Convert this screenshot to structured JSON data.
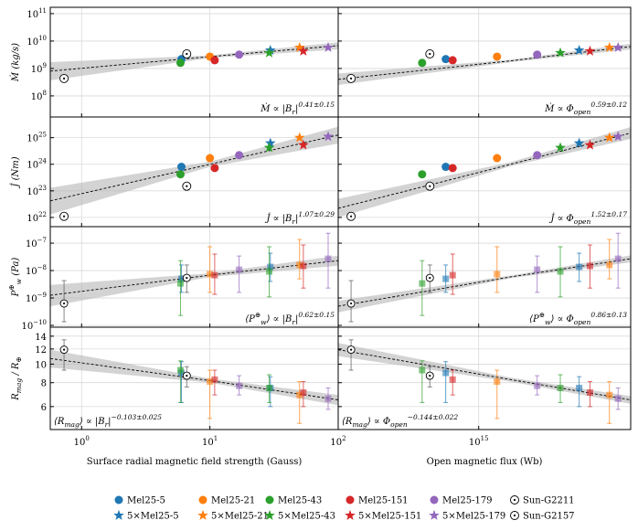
{
  "legend": [
    {
      "name": "Mel25-5",
      "color": "#1f77b4",
      "marker": "circle"
    },
    {
      "name": "Mel25-21",
      "color": "#ff7f0e",
      "marker": "circle"
    },
    {
      "name": "Mel25-43",
      "color": "#2ca02c",
      "marker": "circle"
    },
    {
      "name": "Mel25-151",
      "color": "#d62728",
      "marker": "circle"
    },
    {
      "name": "Mel25-179",
      "color": "#9467bd",
      "marker": "circle"
    },
    {
      "name": "Sun-G2211",
      "color": "#000000",
      "marker": "sun"
    },
    {
      "name": "5×Mel25-5",
      "color": "#1f77b4",
      "marker": "star"
    },
    {
      "name": "5×Mel25-21",
      "color": "#ff7f0e",
      "marker": "star"
    },
    {
      "name": "5×Mel25-43",
      "color": "#2ca02c",
      "marker": "star"
    },
    {
      "name": "5×Mel25-151",
      "color": "#d62728",
      "marker": "star"
    },
    {
      "name": "5×Mel25-179",
      "color": "#9467bd",
      "marker": "star"
    },
    {
      "name": "Sun-G2157",
      "color": "#000000",
      "marker": "sun"
    }
  ],
  "chart_data": [
    {
      "type": "scatter",
      "xscale": "log",
      "yscale": "log",
      "grid": true,
      "annotation_corner": "lower right",
      "ylabel": [
        "Ṁ (kg/s)"
      ],
      "annotation": [
        "Ṁ ∝ |B",
        {
          "sub": "r"
        },
        "|",
        {
          "sup": "0.41±0.15"
        }
      ],
      "xlim": [
        0.57,
        100
      ],
      "ylim": [
        17000000.0,
        170000000000.0
      ],
      "xticks": [
        1,
        10,
        100
      ],
      "yticks": [
        {
          "value": 100000000.0,
          "label": [
            "10",
            "8"
          ]
        },
        {
          "value": 1000000000.0,
          "label": [
            "10",
            "9"
          ]
        },
        {
          "value": 10000000000.0,
          "label": [
            "10",
            "10"
          ]
        },
        {
          "value": 100000000000.0,
          "label": [
            "10",
            "11"
          ]
        }
      ],
      "x": [
        6.0,
        10.0,
        5.9,
        10.9,
        16.9,
        0.73,
        29.6,
        50,
        29,
        53.5,
        83.5,
        6.6
      ],
      "values": [
        2200000000.0,
        2700000000.0,
        1600000000.0,
        2000000000.0,
        3200000000.0,
        430000000.0,
        4600000000.0,
        5800000000.0,
        3700000000.0,
        4300000000.0,
        5800000000.0,
        3400000000.0
      ],
      "fit": {
        "x": [
          0.57,
          10,
          100
        ],
        "values": [
          800000000.0,
          2700000000.0,
          6800000000.0
        ],
        "lower": [
          370000000.0,
          2400000000.0,
          5000000000.0
        ],
        "upper": [
          1700000000.0,
          3000000000.0,
          9000000000.0
        ]
      }
    },
    {
      "type": "scatter",
      "xscale": "log",
      "yscale": "log",
      "grid": true,
      "annotation_corner": "lower right",
      "annotation": [
        "Ṁ ∝ Φ",
        {
          "sub": "open"
        },
        {
          "sup": "0.59±0.12"
        }
      ],
      "xlim": [
        170000000000000.0,
        6800000000000000.0
      ],
      "ylim": [
        17000000.0,
        170000000000.0
      ],
      "xticks": [
        1000000000000000.0
      ],
      "yticks": [
        100000000.0,
        1000000000.0,
        10000000000.0,
        100000000000.0
      ],
      "x": [
        660000000000000.0,
        1260000000000000.0,
        490000000000000.0,
        720000000000000.0,
        2090000000000000.0,
        200000000000000.0,
        3550000000000000.0,
        5200000000000000.0,
        2800000000000000.0,
        4070000000000000.0,
        5800000000000000.0,
        540000000000000.0
      ],
      "values": [
        2200000000.0,
        2700000000.0,
        1600000000.0,
        2000000000.0,
        3200000000.0,
        430000000.0,
        4600000000.0,
        5800000000.0,
        3700000000.0,
        4300000000.0,
        5800000000.0,
        3400000000.0
      ],
      "fit": {
        "x": [
          170000000000000.0,
          1500000000000000.0,
          6800000000000000.0
        ],
        "values": [
          400000000.0,
          1900000000.0,
          6300000000.0
        ],
        "lower": [
          250000000.0,
          1700000000.0,
          5000000000.0
        ],
        "upper": [
          650000000.0,
          2100000000.0,
          8000000000.0
        ]
      }
    },
    {
      "type": "scatter",
      "xscale": "log",
      "yscale": "log",
      "grid": true,
      "annotation_corner": "lower right",
      "ylabel": [
        "J̇ (Nm)"
      ],
      "annotation": [
        "J̇ ∝ |B",
        {
          "sub": "r"
        },
        "|",
        {
          "sup": "1.07±0.29"
        }
      ],
      "xlim": [
        0.57,
        100
      ],
      "ylim": [
        4.5e+21,
        6e+25
      ],
      "xticks": [
        1,
        10,
        100
      ],
      "yticks": [
        {
          "value": 1e+22,
          "label": [
            "10",
            "22"
          ]
        },
        {
          "value": 1e+23,
          "label": [
            "10",
            "23"
          ]
        },
        {
          "value": 1e+24,
          "label": [
            "10",
            "24"
          ]
        },
        {
          "value": 1e+25,
          "label": [
            "10",
            "25"
          ]
        }
      ],
      "x": [
        6.0,
        10.0,
        5.9,
        10.9,
        16.9,
        0.73,
        29.6,
        50,
        29,
        53.5,
        83.5,
        6.6
      ],
      "values": [
        8e+23,
        1.7e+24,
        4.2e+23,
        7.2e+23,
        2.2e+24,
        1.1e+22,
        6.2e+24,
        1e+25,
        4.2e+24,
        5.3e+24,
        1.1e+25,
        1.5e+23
      ],
      "fit": {
        "x": [
          0.57,
          10,
          100
        ],
        "values": [
          4.2e+22,
          1e+24,
          1.26e+25
        ],
        "lower": [
          1.3e+22,
          8e+23,
          6e+24
        ],
        "upper": [
          1.3e+23,
          1.25e+24,
          2.6e+25
        ]
      }
    },
    {
      "type": "scatter",
      "xscale": "log",
      "yscale": "log",
      "grid": true,
      "annotation_corner": "lower right",
      "annotation": [
        "J̇ ∝ Φ",
        {
          "sub": "open"
        },
        {
          "sup": "1.52±0.17"
        }
      ],
      "xlim": [
        170000000000000.0,
        6800000000000000.0
      ],
      "ylim": [
        4.5e+21,
        6e+25
      ],
      "xticks": [
        1000000000000000.0
      ],
      "yticks": [
        1e+22,
        1e+23,
        1e+24,
        1e+25
      ],
      "x": [
        660000000000000.0,
        1260000000000000.0,
        490000000000000.0,
        720000000000000.0,
        2090000000000000.0,
        200000000000000.0,
        3550000000000000.0,
        5200000000000000.0,
        2800000000000000.0,
        4070000000000000.0,
        5800000000000000.0,
        540000000000000.0
      ],
      "values": [
        8e+23,
        1.7e+24,
        4.2e+23,
        7.2e+23,
        2.2e+24,
        1.1e+22,
        6.2e+24,
        1e+25,
        4.2e+24,
        5.3e+24,
        1.1e+25,
        1.5e+23
      ],
      "fit": {
        "x": [
          170000000000000.0,
          1500000000000000.0,
          6800000000000000.0
        ],
        "values": [
          2.2e+22,
          1e+24,
          1.5e+25
        ],
        "lower": [
          1e+22,
          8.5e+23,
          9e+24
        ],
        "upper": [
          5e+22,
          1.2e+24,
          2.5e+25
        ]
      }
    },
    {
      "type": "scatter",
      "xscale": "log",
      "yscale": "log",
      "grid": true,
      "annotation_corner": "lower right",
      "ylabel": [
        "P",
        {
          "sup": "⊕"
        },
        {
          "sub": "w"
        },
        " (Pa)"
      ],
      "annotation": [
        "⟨P",
        {
          "sup": "⊕"
        },
        {
          "sub": "w"
        },
        "⟩ ∝ |B",
        {
          "sub": "r"
        },
        "|",
        {
          "sup": "0.62±0.15"
        }
      ],
      "xlim": [
        0.57,
        100
      ],
      "ylim": [
        8.6e-11,
        4e-07
      ],
      "xticks": [
        1,
        10,
        100
      ],
      "yticks": [
        {
          "value": 1e-10,
          "label": [
            "10",
            "−10"
          ]
        },
        {
          "value": 1e-09,
          "label": [
            "10",
            "−9"
          ]
        },
        {
          "value": 1e-08,
          "label": [
            "10",
            "−8"
          ]
        },
        {
          "value": 1e-07,
          "label": [
            "10",
            "−7"
          ]
        }
      ],
      "x": [
        6.0,
        10.0,
        5.9,
        10.9,
        16.9,
        0.73,
        29.6,
        50,
        29,
        53.5,
        83.5,
        6.6
      ],
      "values": [
        5e-09,
        7.4e-09,
        3.4e-09,
        6.8e-09,
        1.08e-08,
        6.3e-10,
        1.36e-08,
        1.6e-08,
        9.3e-09,
        1.47e-08,
        2.7e-08,
        5.4e-09
      ],
      "lower": [
        1.6e-09,
        1.6e-09,
        2.3e-10,
        1.36e-09,
        1.6e-09,
        1.36e-10,
        4e-09,
        5e-09,
        1.1e-09,
        2.3e-09,
        2.3e-09,
        1.6e-09
      ],
      "upper": [
        1.6e-08,
        7.4e-08,
        2.3e-08,
        4e-08,
        3.4e-08,
        4.3e-09,
        4.3e-08,
        1.36e-07,
        7.4e-08,
        8.6e-08,
        2.3e-07,
        1.6e-08
      ],
      "fit": {
        "x": [
          0.57,
          10,
          100
        ],
        "values": [
          1.26e-09,
          6.8e-09,
          2.3e-08
        ],
        "lower": [
          5e-10,
          5.8e-09,
          1.5e-08
        ],
        "upper": [
          3e-09,
          8e-09,
          3.5e-08
        ]
      }
    },
    {
      "type": "scatter",
      "xscale": "log",
      "yscale": "log",
      "grid": true,
      "annotation_corner": "lower right",
      "annotation": [
        "⟨P",
        {
          "sup": "⊕"
        },
        {
          "sub": "w"
        },
        "⟩ ∝ Φ",
        {
          "sub": "open"
        },
        {
          "sup": "0.86±0.13"
        }
      ],
      "xlim": [
        170000000000000.0,
        6800000000000000.0
      ],
      "ylim": [
        8.6e-11,
        4e-07
      ],
      "xticks": [
        1000000000000000.0
      ],
      "yticks": [
        1e-10,
        1e-09,
        1e-08,
        1e-07
      ],
      "x": [
        660000000000000.0,
        1260000000000000.0,
        490000000000000.0,
        720000000000000.0,
        2090000000000000.0,
        200000000000000.0,
        3550000000000000.0,
        5200000000000000.0,
        2800000000000000.0,
        4070000000000000.0,
        5800000000000000.0,
        540000000000000.0
      ],
      "values": [
        5e-09,
        7.4e-09,
        3.4e-09,
        6.8e-09,
        1.08e-08,
        6.3e-10,
        1.36e-08,
        1.6e-08,
        9.3e-09,
        1.47e-08,
        2.7e-08,
        5.4e-09
      ],
      "lower": [
        1.6e-09,
        1.6e-09,
        2.3e-10,
        1.36e-09,
        1.6e-09,
        1.36e-10,
        4e-09,
        5e-09,
        1.1e-09,
        2.3e-09,
        2.3e-09,
        1.6e-09
      ],
      "upper": [
        1.6e-08,
        7.4e-08,
        2.3e-08,
        4e-08,
        3.4e-08,
        4.3e-09,
        4.3e-08,
        1.36e-07,
        7.4e-08,
        8.6e-08,
        2.3e-07,
        1.6e-08
      ],
      "fit": {
        "x": [
          170000000000000.0,
          1500000000000000.0,
          6800000000000000.0
        ],
        "values": [
          5e-10,
          5.9e-09,
          2.7e-08
        ],
        "lower": [
          3e-10,
          5.3e-09,
          2e-08
        ],
        "upper": [
          8e-10,
          6.6e-09,
          3.6e-08
        ]
      }
    },
    {
      "type": "scatter",
      "xscale": "log",
      "yscale": "log",
      "grid": true,
      "annotation_corner": "lower left",
      "ylabel": [
        "R",
        {
          "sub": "mag"
        },
        " / R",
        {
          "sub": "⊕"
        }
      ],
      "xlabel": "Surface radial magnetic field strength (Gauss)",
      "annotation": [
        "⟨R",
        {
          "sub": "mag"
        },
        "⟩ ∝ |B",
        {
          "sub": "r"
        },
        "|",
        {
          "sup": "−0.103±0.025"
        }
      ],
      "xlim": [
        0.57,
        100
      ],
      "ylim": [
        4.55,
        15.6
      ],
      "xticks": [
        {
          "value": 1,
          "label": [
            "10",
            "0"
          ]
        },
        {
          "value": 10,
          "label": [
            "10",
            "1"
          ]
        },
        {
          "value": 100,
          "label": [
            "10",
            "2"
          ]
        }
      ],
      "yticks": [
        6,
        8,
        10,
        12,
        14
      ],
      "x": [
        6.0,
        10.0,
        5.9,
        10.9,
        16.9,
        0.73,
        29.6,
        50,
        29,
        53.5,
        83.5,
        6.6
      ],
      "values": [
        9.0,
        8.1,
        9.3,
        8.3,
        7.7,
        11.9,
        7.5,
        6.9,
        7.5,
        7.1,
        6.6,
        8.7
      ],
      "lower": [
        6.3,
        5.2,
        6.3,
        6.9,
        6.9,
        9.3,
        6.0,
        4.9,
        6.3,
        6.0,
        5.8,
        7.6
      ],
      "upper": [
        10.3,
        9.3,
        10.4,
        9.3,
        8.7,
        13.4,
        8.6,
        8.1,
        8.8,
        8.1,
        7.5,
        9.7
      ],
      "fit": {
        "x": [
          0.57,
          10,
          100
        ],
        "values": [
          10.7,
          8.2,
          6.5
        ],
        "lower": [
          9.6,
          8.0,
          6.1
        ],
        "upper": [
          11.9,
          8.4,
          6.9
        ]
      }
    },
    {
      "type": "scatter",
      "xscale": "log",
      "yscale": "log",
      "grid": true,
      "annotation_corner": "lower left",
      "xlabel": "Open magnetic flux (Wb)",
      "annotation": [
        "⟨R",
        {
          "sub": "mag"
        },
        "⟩ ∝ Φ",
        {
          "sub": "open"
        },
        {
          "sup": "−0.144±0.022"
        }
      ],
      "xlim": [
        170000000000000.0,
        6800000000000000.0
      ],
      "ylim": [
        4.55,
        15.6
      ],
      "xticks": [
        {
          "value": 1000000000000000.0,
          "label": [
            "10",
            "15"
          ]
        }
      ],
      "yticks": [
        6,
        8,
        10,
        12,
        14
      ],
      "x": [
        660000000000000.0,
        1260000000000000.0,
        490000000000000.0,
        720000000000000.0,
        2090000000000000.0,
        200000000000000.0,
        3550000000000000.0,
        5200000000000000.0,
        2800000000000000.0,
        4070000000000000.0,
        5800000000000000.0,
        540000000000000.0
      ],
      "values": [
        9.0,
        8.1,
        9.3,
        8.3,
        7.7,
        11.9,
        7.5,
        6.9,
        7.5,
        7.1,
        6.6,
        8.7
      ],
      "lower": [
        6.3,
        5.2,
        6.3,
        6.9,
        6.9,
        9.3,
        6.0,
        4.9,
        6.3,
        6.0,
        5.8,
        7.6
      ],
      "upper": [
        10.3,
        9.3,
        10.4,
        9.3,
        8.7,
        13.4,
        8.6,
        8.1,
        8.8,
        8.1,
        7.5,
        9.7
      ],
      "fit": {
        "x": [
          170000000000000.0,
          1500000000000000.0,
          6800000000000000.0
        ],
        "values": [
          11.9,
          8.3,
          6.5
        ],
        "lower": [
          11.0,
          8.1,
          6.2
        ],
        "upper": [
          12.9,
          8.5,
          6.8
        ]
      }
    }
  ]
}
